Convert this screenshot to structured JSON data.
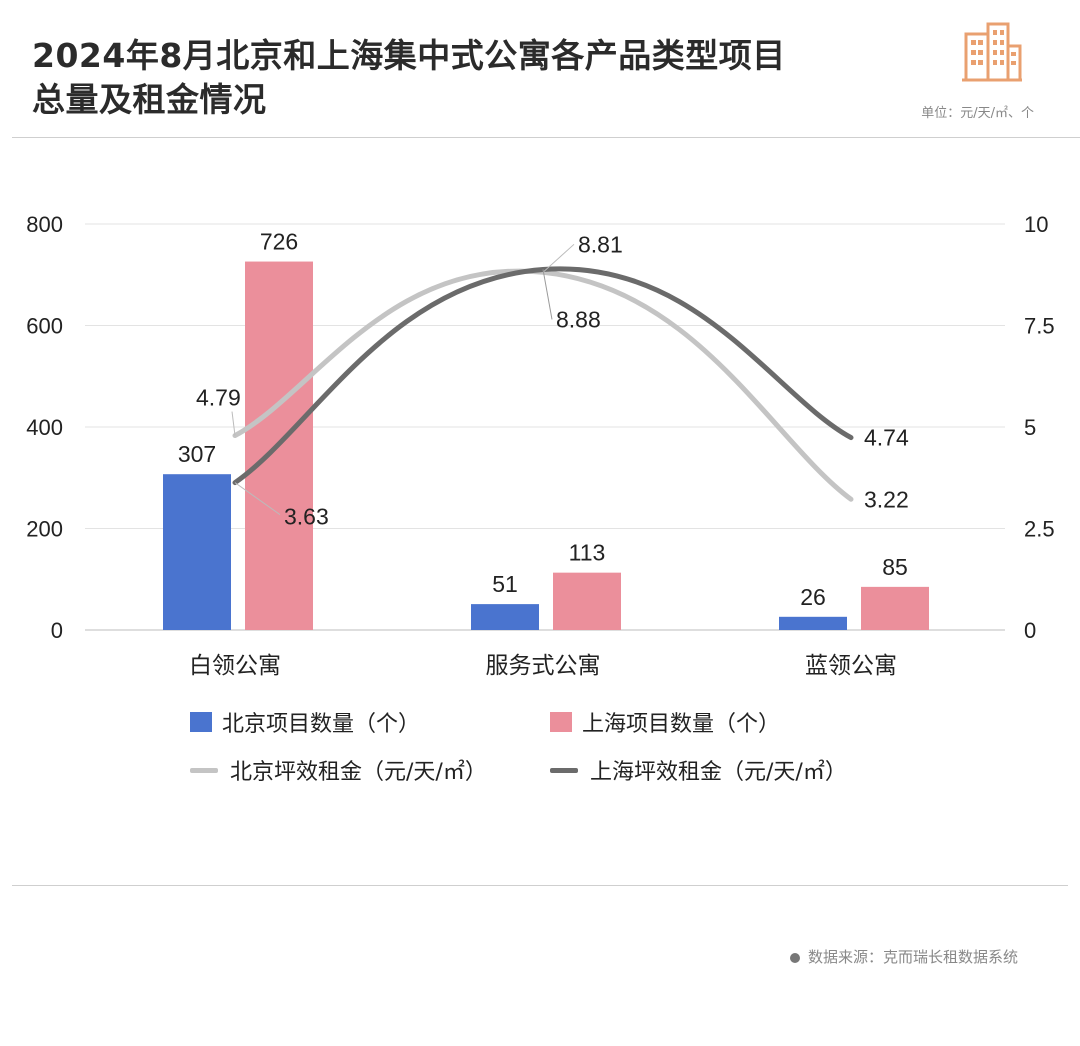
{
  "header": {
    "title_line1": "2024年8月北京和上海集中式公寓各产品类型项目",
    "title_line2": "总量及租金情况",
    "unit": "单位：元/天/㎡、个"
  },
  "footer": {
    "source": "数据来源：克而瑞长租数据系统"
  },
  "colors": {
    "bj_bar": "#4a74cf",
    "sh_bar": "#eb8f9b",
    "bj_line": "#c4c4c4",
    "sh_line": "#6b6b6b",
    "logo": "#e9a070"
  },
  "chart_data": {
    "type": "bar",
    "categories": [
      "白领公寓",
      "服务式公寓",
      "蓝领公寓"
    ],
    "y_left": {
      "ylim": [
        0,
        800
      ],
      "ticks": [
        "0",
        "200",
        "400",
        "600",
        "800"
      ]
    },
    "y_right": {
      "ylim": [
        0,
        10
      ],
      "ticks": [
        "0",
        "2.5",
        "5",
        "7.5",
        "10"
      ]
    },
    "grid": true,
    "legend_position": "bottom",
    "series": [
      {
        "name": "北京项目数量（个）",
        "type": "bar",
        "axis": "left",
        "values": [
          307,
          51,
          26
        ],
        "labels": [
          "307",
          "51",
          "26"
        ]
      },
      {
        "name": "上海项目数量（个）",
        "type": "bar",
        "axis": "left",
        "values": [
          726,
          113,
          85
        ],
        "labels": [
          "726",
          "113",
          "85"
        ]
      },
      {
        "name": "北京坪效租金（元/天/㎡）",
        "type": "line",
        "axis": "right",
        "values": [
          4.79,
          8.81,
          3.22
        ],
        "labels": [
          "4.79",
          "8.81",
          "3.22"
        ]
      },
      {
        "name": "上海坪效租金（元/天/㎡）",
        "type": "line",
        "axis": "right",
        "values": [
          3.63,
          8.88,
          4.74
        ],
        "labels": [
          "3.63",
          "8.88",
          "4.74"
        ]
      }
    ]
  }
}
